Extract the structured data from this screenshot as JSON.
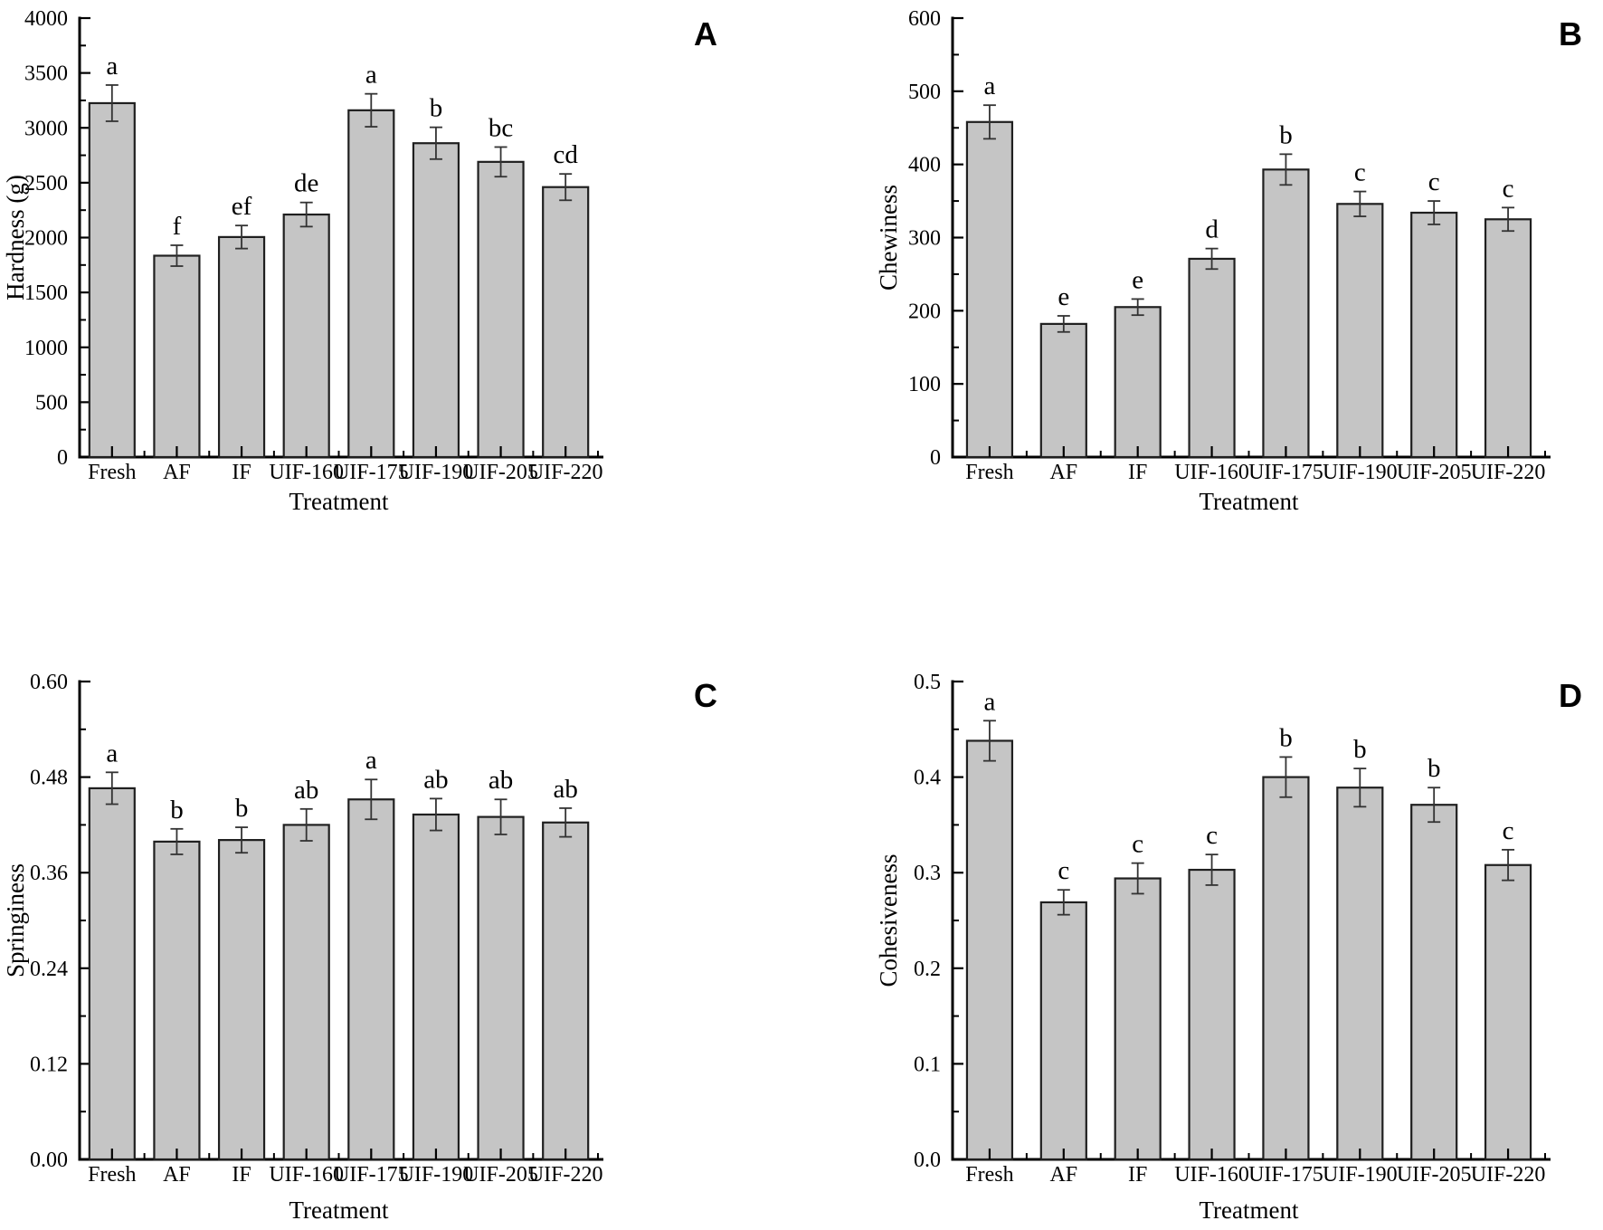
{
  "figure": {
    "style": {
      "background": "#ffffff",
      "bar_fill": "#c5c5c5",
      "bar_stroke": "#1f1f1f",
      "error_color": "#333333",
      "text_color": "#000000"
    }
  },
  "chart_data": [
    {
      "type": "bar",
      "panel_letter": "A",
      "ylabel": "Hardness (g)",
      "xlabel": "Treatment",
      "categories": [
        "Fresh",
        "AF",
        "IF",
        "UIF-160",
        "UIF-175",
        "UIF-190",
        "UIF-205",
        "UIF-220"
      ],
      "values": [
        3225,
        1835,
        2005,
        2210,
        3160,
        2860,
        2690,
        2460
      ],
      "errors": [
        165,
        95,
        105,
        110,
        150,
        145,
        135,
        120
      ],
      "sig_letters": [
        "a",
        "f",
        "ef",
        "de",
        "a",
        "b",
        "bc",
        "cd"
      ],
      "ylim": [
        0,
        4000
      ],
      "yticks": [
        "0",
        "500",
        "1000",
        "1500",
        "2000",
        "2500",
        "3000",
        "3500",
        "4000"
      ],
      "grid": "off",
      "legend": "none"
    },
    {
      "type": "bar",
      "panel_letter": "B",
      "ylabel": "Chewiness",
      "xlabel": "Treatment",
      "categories": [
        "Fresh",
        "AF",
        "IF",
        "UIF-160",
        "UIF-175",
        "UIF-190",
        "UIF-205",
        "UIF-220"
      ],
      "values": [
        458,
        182,
        205,
        271,
        393,
        346,
        334,
        325
      ],
      "errors": [
        23,
        11,
        11,
        14,
        21,
        17,
        16,
        16
      ],
      "sig_letters": [
        "a",
        "e",
        "e",
        "d",
        "b",
        "c",
        "c",
        "c"
      ],
      "ylim": [
        0,
        600
      ],
      "yticks": [
        "0",
        "100",
        "200",
        "300",
        "400",
        "500",
        "600"
      ],
      "grid": "off",
      "legend": "none"
    },
    {
      "type": "bar",
      "panel_letter": "C",
      "ylabel": "Springiness",
      "xlabel": "Treatment",
      "categories": [
        "Fresh",
        "AF",
        "IF",
        "UIF-160",
        "UIF-175",
        "UIF-190",
        "UIF-205",
        "UIF-220"
      ],
      "values": [
        0.466,
        0.399,
        0.401,
        0.42,
        0.452,
        0.433,
        0.43,
        0.423
      ],
      "errors": [
        0.02,
        0.016,
        0.016,
        0.02,
        0.025,
        0.02,
        0.022,
        0.018
      ],
      "sig_letters": [
        "a",
        "b",
        "b",
        "ab",
        "a",
        "ab",
        "ab",
        "ab"
      ],
      "ylim": [
        0,
        0.6
      ],
      "yticks": [
        "0.00",
        "0.12",
        "0.24",
        "0.36",
        "0.48",
        "0.60"
      ],
      "grid": "off",
      "legend": "none"
    },
    {
      "type": "bar",
      "panel_letter": "D",
      "ylabel": "Cohesiveness",
      "xlabel": "Treatment",
      "categories": [
        "Fresh",
        "AF",
        "IF",
        "UIF-160",
        "UIF-175",
        "UIF-190",
        "UIF-205",
        "UIF-220"
      ],
      "values": [
        0.438,
        0.269,
        0.294,
        0.303,
        0.4,
        0.389,
        0.371,
        0.308
      ],
      "errors": [
        0.021,
        0.013,
        0.016,
        0.016,
        0.021,
        0.02,
        0.018,
        0.016
      ],
      "sig_letters": [
        "a",
        "c",
        "c",
        "c",
        "b",
        "b",
        "b",
        "c"
      ],
      "ylim": [
        0,
        0.5
      ],
      "yticks": [
        "0.0",
        "0.1",
        "0.2",
        "0.3",
        "0.4",
        "0.5"
      ],
      "grid": "off",
      "legend": "none"
    }
  ]
}
